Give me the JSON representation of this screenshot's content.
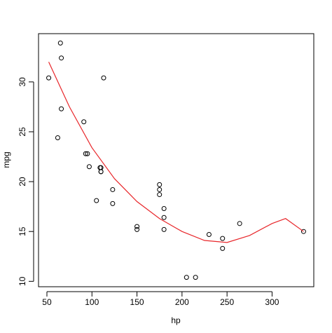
{
  "chart_data": {
    "type": "scatter",
    "xlabel": "hp",
    "ylabel": "mpg",
    "xlim": [
      40.68,
      346.32
    ],
    "ylim": [
      9.46,
      34.84
    ],
    "xticks": [
      50,
      100,
      150,
      200,
      250,
      300
    ],
    "yticks": [
      10,
      15,
      20,
      25,
      30
    ],
    "points": {
      "color": "#000000",
      "x": [
        110,
        110,
        93,
        110,
        175,
        105,
        245,
        62,
        95,
        123,
        123,
        180,
        180,
        180,
        205,
        215,
        230,
        66,
        52,
        65,
        97,
        150,
        150,
        245,
        175,
        66,
        91,
        113,
        264,
        175,
        335,
        109
      ],
      "y": [
        21,
        21,
        22.8,
        21.4,
        18.7,
        18.1,
        14.3,
        24.4,
        22.8,
        19.2,
        17.8,
        16.4,
        17.3,
        15.2,
        10.4,
        10.4,
        14.7,
        32.4,
        30.4,
        33.9,
        21.5,
        15.5,
        15.2,
        13.3,
        19.2,
        27.3,
        26,
        30.4,
        15.8,
        19.7,
        15,
        21.4
      ]
    },
    "fit": {
      "color": "#e8262a",
      "x": [
        52,
        75,
        100,
        125,
        150,
        175,
        200,
        225,
        250,
        275,
        300,
        315,
        335
      ],
      "y": [
        32.0,
        27.5,
        23.4,
        20.3,
        18.0,
        16.3,
        15.0,
        14.1,
        13.9,
        14.6,
        15.8,
        16.3,
        15.0
      ]
    }
  }
}
